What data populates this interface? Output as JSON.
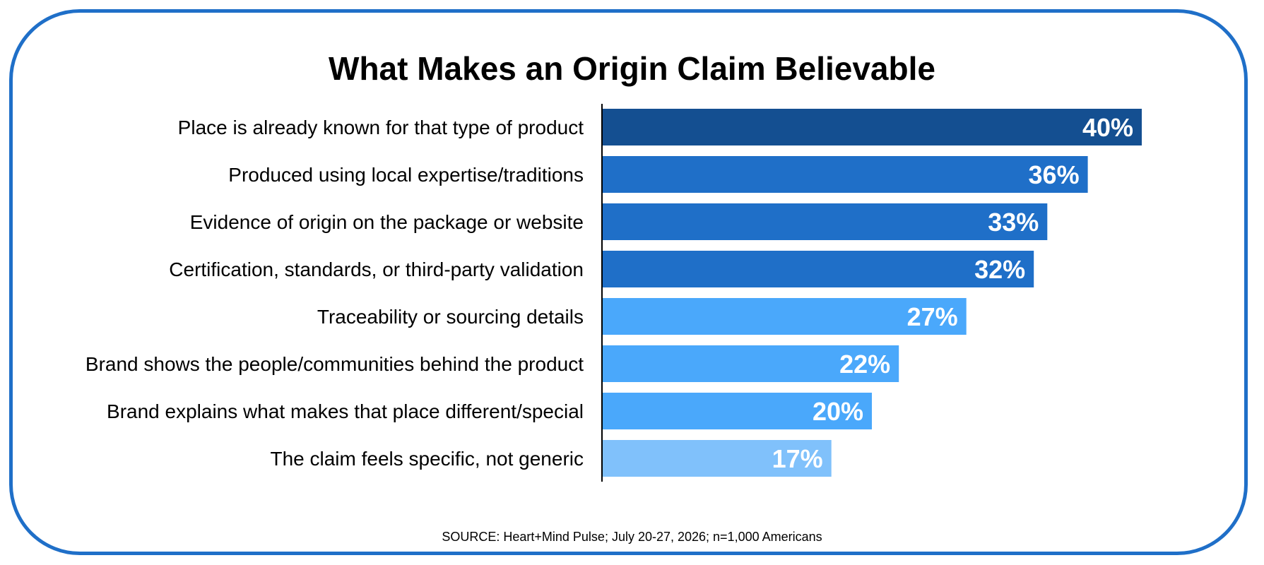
{
  "chart_data": {
    "type": "bar",
    "orientation": "horizontal",
    "title": "What Makes an Origin Claim Believable",
    "categories": [
      "Place is already known for that type of product",
      "Produced using local expertise/traditions",
      "Evidence of origin on the package or website",
      "Certification, standards, or third-party validation",
      "Traceability or sourcing details",
      "Brand shows the people/communities behind the product",
      "Brand explains what makes that place different/special",
      "The claim feels specific, not generic"
    ],
    "values": [
      40,
      36,
      33,
      32,
      27,
      22,
      20,
      17
    ],
    "value_labels": [
      "40%",
      "36%",
      "33%",
      "32%",
      "27%",
      "22%",
      "20%",
      "17%"
    ],
    "bar_colors": [
      "#144f91",
      "#1f6fc8",
      "#1f6fc8",
      "#1f6fc8",
      "#4aa8fb",
      "#4aa8fb",
      "#4aa8fb",
      "#80c1fb"
    ],
    "xlim": [
      0,
      40
    ],
    "grid": false,
    "legend": "none",
    "unit": "%"
  },
  "source": "SOURCE: Heart+Mind Pulse; July 20-27, 2026; n=1,000 Americans",
  "colors": {
    "frame": "#1f6fc8",
    "axis": "#000000"
  }
}
